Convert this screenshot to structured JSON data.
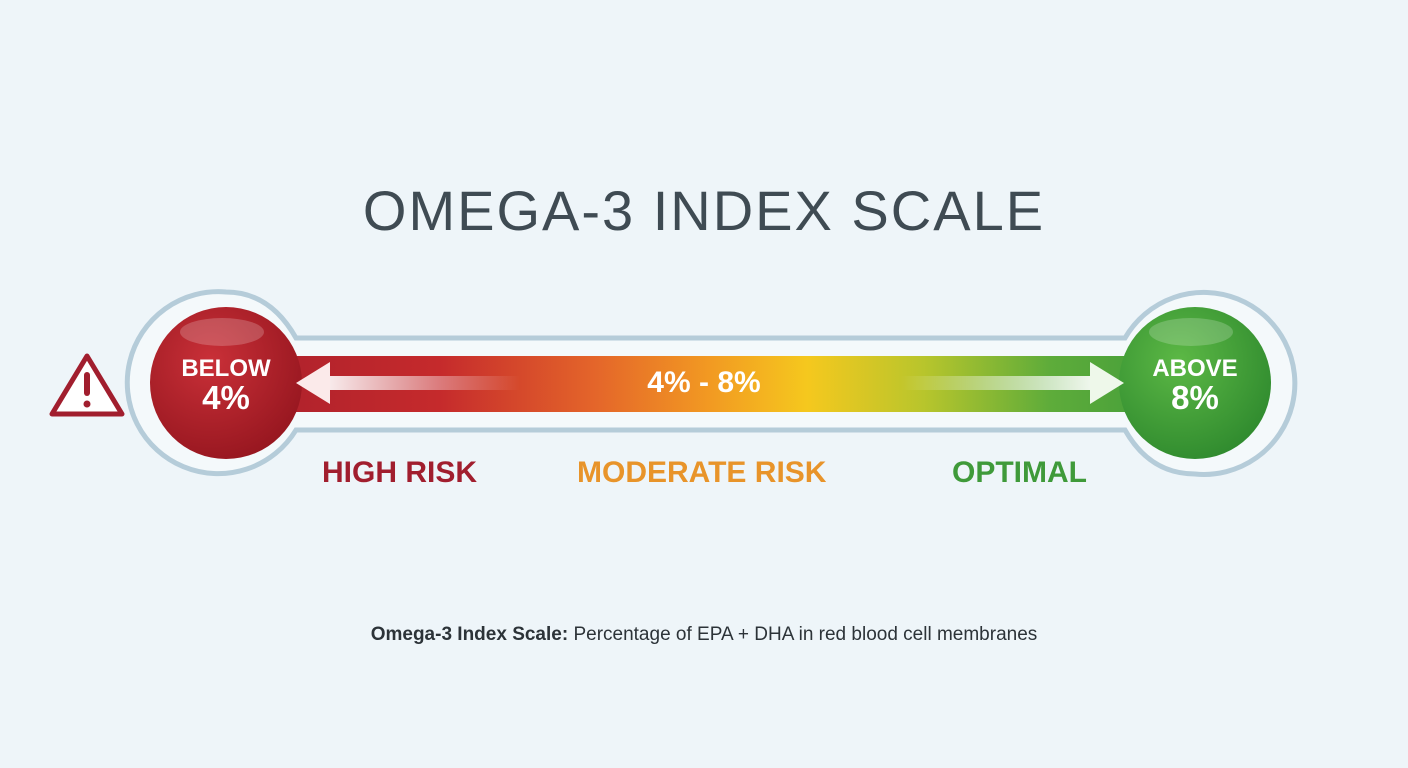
{
  "title": "OMEGA-3 INDEX SCALE",
  "scale": {
    "left_end": {
      "line1": "BELOW",
      "line2": "4%",
      "color": "#a91f2c"
    },
    "middle": {
      "label": "4% - 8%",
      "color": "#f5b21c"
    },
    "right_end": {
      "line1": "ABOVE",
      "line2": "8%",
      "color": "#3d9a3a"
    },
    "warning_icon": "warning-triangle-icon"
  },
  "risk_labels": {
    "high": {
      "text": "HIGH RISK",
      "color": "#a11e2e"
    },
    "moderate": {
      "text": "MODERATE RISK",
      "color": "#e8942a"
    },
    "optimal": {
      "text": "OPTIMAL",
      "color": "#3f9a3a"
    }
  },
  "caption": {
    "bold": "Omega-3 Index Scale:",
    "text": "Percentage of EPA + DHA in red blood cell membranes"
  }
}
